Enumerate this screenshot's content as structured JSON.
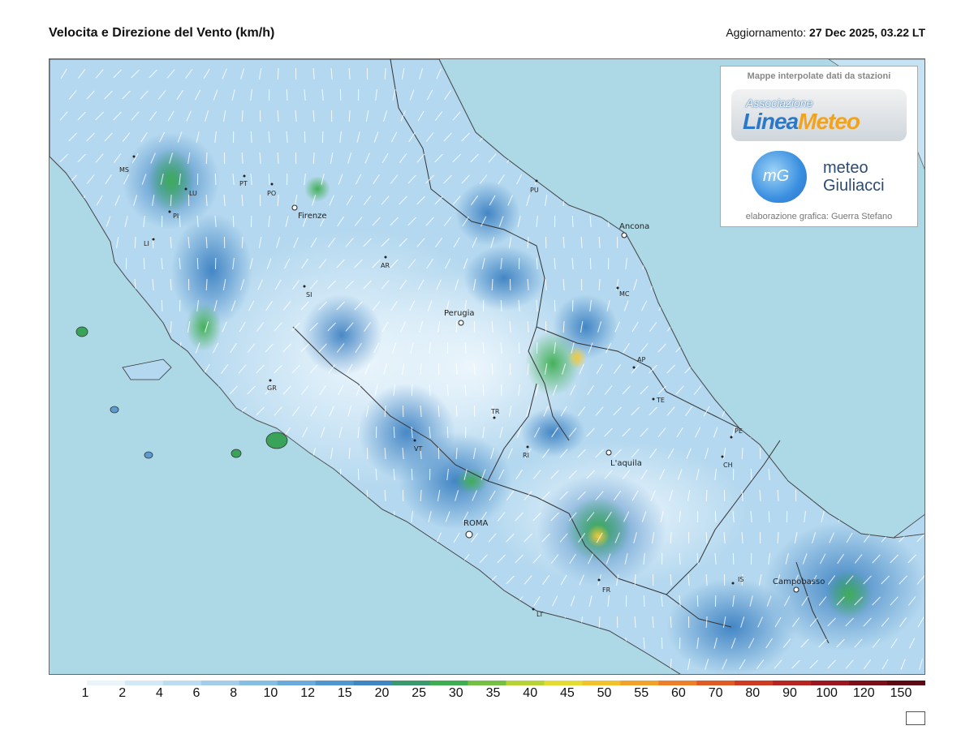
{
  "header": {
    "title": "Velocita e Direzione del Vento  (km/h)",
    "update_label": "Aggiornamento:",
    "update_value": "27 Dec 2025, 03.22 LT"
  },
  "logo_panel": {
    "heading": "Mappe interpolate dati da stazioni",
    "association_small": "Associazione",
    "brand_linea": "Linea",
    "brand_meteo": "Meteo",
    "mg_mark": "mG",
    "mg_line1": "meteo",
    "mg_line2": "Giuliacci",
    "credit": "elaborazione grafica: Guerra Stefano"
  },
  "colors": {
    "sea": "#add8e6",
    "land_light": "#d6ecf8",
    "land_mid": "#9ccbe8",
    "land_strong": "#5b9bd1",
    "green": "#3aa35a",
    "yellow": "#e8d23a"
  },
  "places": [
    {
      "name": "MS",
      "kind": "province"
    },
    {
      "name": "LU",
      "kind": "province"
    },
    {
      "name": "PT",
      "kind": "province"
    },
    {
      "name": "PO",
      "kind": "province"
    },
    {
      "name": "PI",
      "kind": "province"
    },
    {
      "name": "LI",
      "kind": "province"
    },
    {
      "name": "Firenze",
      "kind": "city"
    },
    {
      "name": "AR",
      "kind": "province"
    },
    {
      "name": "SI",
      "kind": "province"
    },
    {
      "name": "PU",
      "kind": "province"
    },
    {
      "name": "Ancona",
      "kind": "city"
    },
    {
      "name": "MC",
      "kind": "province"
    },
    {
      "name": "Perugia",
      "kind": "city"
    },
    {
      "name": "AP",
      "kind": "province"
    },
    {
      "name": "TE",
      "kind": "province"
    },
    {
      "name": "GR",
      "kind": "province"
    },
    {
      "name": "TR",
      "kind": "province"
    },
    {
      "name": "PE",
      "kind": "province"
    },
    {
      "name": "VT",
      "kind": "province"
    },
    {
      "name": "RI",
      "kind": "province"
    },
    {
      "name": "L'aquila",
      "kind": "city"
    },
    {
      "name": "CH",
      "kind": "province"
    },
    {
      "name": "ROMA",
      "kind": "city"
    },
    {
      "name": "FR",
      "kind": "province"
    },
    {
      "name": "IS",
      "kind": "province"
    },
    {
      "name": "Campobasso",
      "kind": "city"
    },
    {
      "name": "LT",
      "kind": "province"
    }
  ],
  "colorbar": {
    "labels": [
      "1",
      "2",
      "4",
      "6",
      "8",
      "10",
      "12",
      "15",
      "20",
      "25",
      "30",
      "35",
      "40",
      "45",
      "50",
      "55",
      "60",
      "70",
      "80",
      "90",
      "100",
      "120",
      "150"
    ],
    "colors": [
      "#ffffff",
      "#eaf4fb",
      "#d3e9f7",
      "#bcdcf2",
      "#a2cdeb",
      "#86bde3",
      "#6aabdb",
      "#5097cf",
      "#3f86c2",
      "#3a9a6e",
      "#3fae52",
      "#74c043",
      "#b7d235",
      "#e4dc32",
      "#f2c22e",
      "#f0a22a",
      "#ec7f28",
      "#e05a24",
      "#cf3a22",
      "#b82421",
      "#9d1720",
      "#7d0f1b",
      "#5e0a14"
    ]
  }
}
